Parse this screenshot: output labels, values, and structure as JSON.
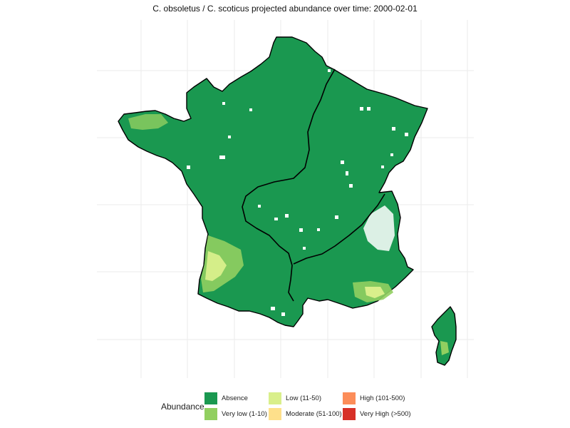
{
  "map": {
    "title": "C. obsoletus / C. scoticus projected abundance over time: 2000-02-01",
    "legend": {
      "title": "Abundance",
      "items": [
        {
          "label": "Absence",
          "color": "#1a9850"
        },
        {
          "label": "Very low (1-10)",
          "color": "#91cf60"
        },
        {
          "label": "Low (11-50)",
          "color": "#d9ef8b"
        },
        {
          "label": "Moderate (51-100)",
          "color": "#fee08b"
        },
        {
          "label": "High (101-500)",
          "color": "#fc8d59"
        },
        {
          "label": "Very High (>500)",
          "color": "#d73027"
        }
      ]
    }
  }
}
